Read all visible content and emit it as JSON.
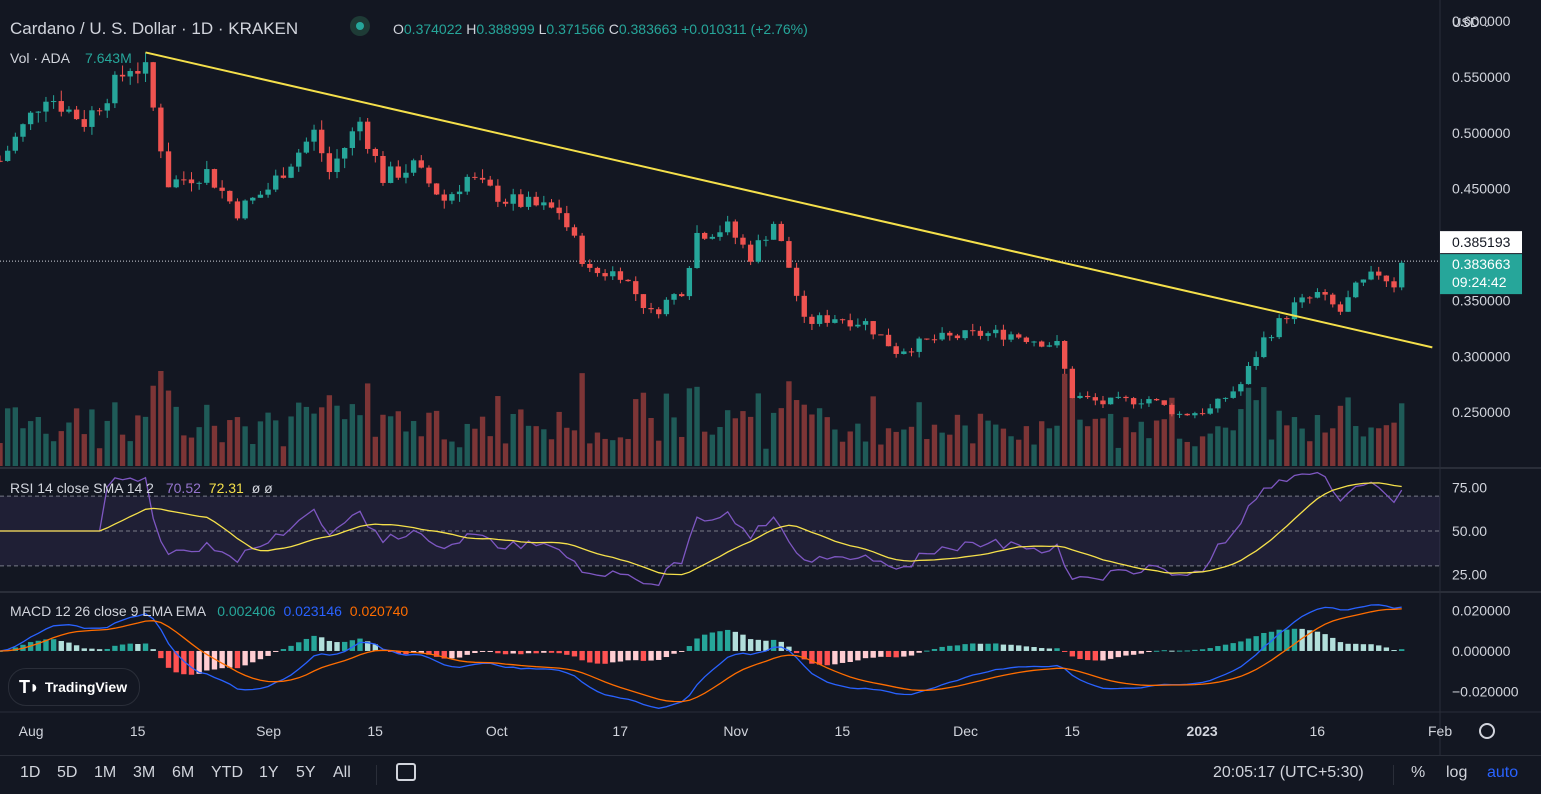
{
  "header": {
    "symbol_title": "Cardano / U. S. Dollar · 1D · KRAKEN",
    "ohlc": [
      {
        "k": "O",
        "v": "0.374022"
      },
      {
        "k": "H",
        "v": "0.388999"
      },
      {
        "k": "L",
        "v": "0.371566"
      },
      {
        "k": "C",
        "v": "0.383663"
      }
    ],
    "change": "+0.010311 (+2.76%)",
    "volume_label": "Vol · ADA",
    "volume_value": "7.643M",
    "currency": "USD"
  },
  "price_scale": {
    "ticks": [
      "0.600000",
      "0.550000",
      "0.500000",
      "0.450000",
      "0.350000",
      "0.300000",
      "0.250000"
    ],
    "marked_price": "0.385193",
    "last_price": "0.383663",
    "countdown": "09:24:42"
  },
  "rsi": {
    "label": "RSI 14 close SMA 14 2",
    "value1": "70.52",
    "value2": "72.31",
    "extra": "ø ø",
    "ticks": [
      "75.00",
      "50.00",
      "25.00"
    ]
  },
  "macd": {
    "label": "MACD 12 26 close 9 EMA EMA",
    "hist": "0.002406",
    "macd": "0.023146",
    "signal": "0.020740",
    "ticks": [
      "0.020000",
      "0.000000",
      "−0.020000"
    ]
  },
  "time_axis": [
    "Aug",
    "15",
    "Sep",
    "15",
    "Oct",
    "17",
    "Nov",
    "15",
    "Dec",
    "15",
    "2023",
    "16",
    "Feb"
  ],
  "brand": "TradingView",
  "bottom_bar": {
    "ranges": [
      "1D",
      "5D",
      "1M",
      "3M",
      "6M",
      "YTD",
      "1Y",
      "5Y",
      "All"
    ],
    "clock": "20:05:17 (UTC+5:30)",
    "percent": "%",
    "log": "log",
    "auto": "auto"
  },
  "chart_data": {
    "type": "candlestick",
    "title": "Cardano / U. S. Dollar · 1D · KRAKEN",
    "x_range": [
      "2022-07-28",
      "2023-02-01"
    ],
    "y_range": [
      0.2,
      0.61
    ],
    "colors": {
      "up": "#26a69a",
      "down": "#ef5350",
      "trendline": "#f5e04b",
      "rsi": "#7e57c2",
      "rsi_sma": "#f5e04b",
      "macd": "#2962ff",
      "signal": "#ff6d00"
    },
    "waypoints": [
      {
        "date": "2022-07-28",
        "close": 0.475
      },
      {
        "date": "2022-08-03",
        "close": 0.535
      },
      {
        "date": "2022-08-08",
        "close": 0.51
      },
      {
        "date": "2022-08-14",
        "close": 0.56
      },
      {
        "date": "2022-08-16",
        "close": 0.555
      },
      {
        "date": "2022-08-19",
        "close": 0.455
      },
      {
        "date": "2022-08-24",
        "close": 0.465
      },
      {
        "date": "2022-08-28",
        "close": 0.43
      },
      {
        "date": "2022-09-01",
        "close": 0.45
      },
      {
        "date": "2022-09-07",
        "close": 0.5
      },
      {
        "date": "2022-09-09",
        "close": 0.465
      },
      {
        "date": "2022-09-13",
        "close": 0.51
      },
      {
        "date": "2022-09-16",
        "close": 0.46
      },
      {
        "date": "2022-09-20",
        "close": 0.47
      },
      {
        "date": "2022-09-24",
        "close": 0.44
      },
      {
        "date": "2022-09-27",
        "close": 0.46
      },
      {
        "date": "2022-10-02",
        "close": 0.44
      },
      {
        "date": "2022-10-09",
        "close": 0.43
      },
      {
        "date": "2022-10-13",
        "close": 0.375
      },
      {
        "date": "2022-10-17",
        "close": 0.375
      },
      {
        "date": "2022-10-21",
        "close": 0.338
      },
      {
        "date": "2022-10-25",
        "close": 0.36
      },
      {
        "date": "2022-10-27",
        "close": 0.41
      },
      {
        "date": "2022-10-31",
        "close": 0.415
      },
      {
        "date": "2022-11-03",
        "close": 0.39
      },
      {
        "date": "2022-11-06",
        "close": 0.42
      },
      {
        "date": "2022-11-08",
        "close": 0.38
      },
      {
        "date": "2022-11-10",
        "close": 0.33
      },
      {
        "date": "2022-11-14",
        "close": 0.335
      },
      {
        "date": "2022-11-18",
        "close": 0.33
      },
      {
        "date": "2022-11-22",
        "close": 0.305
      },
      {
        "date": "2022-11-27",
        "close": 0.315
      },
      {
        "date": "2022-12-03",
        "close": 0.32
      },
      {
        "date": "2022-12-07",
        "close": 0.32
      },
      {
        "date": "2022-12-13",
        "close": 0.31
      },
      {
        "date": "2022-12-15",
        "close": 0.265
      },
      {
        "date": "2022-12-19",
        "close": 0.258
      },
      {
        "date": "2022-12-25",
        "close": 0.262
      },
      {
        "date": "2022-12-29",
        "close": 0.248
      },
      {
        "date": "2023-01-02",
        "close": 0.252
      },
      {
        "date": "2023-01-06",
        "close": 0.275
      },
      {
        "date": "2023-01-09",
        "close": 0.315
      },
      {
        "date": "2023-01-13",
        "close": 0.345
      },
      {
        "date": "2023-01-16",
        "close": 0.355
      },
      {
        "date": "2023-01-19",
        "close": 0.34
      },
      {
        "date": "2023-01-21",
        "close": 0.36
      },
      {
        "date": "2023-01-24",
        "close": 0.375
      },
      {
        "date": "2023-01-26",
        "close": 0.365
      },
      {
        "date": "2023-01-27",
        "close": 0.3837
      }
    ],
    "trendline": {
      "from": {
        "date": "2022-08-16",
        "price": 0.572
      },
      "to": {
        "date": "2023-01-31",
        "price": 0.308
      }
    },
    "horizontal_line_price": 0.385193,
    "rsi_range": [
      15,
      85
    ],
    "rsi_bands": [
      70,
      50,
      30
    ],
    "macd_range": [
      -0.03,
      0.028
    ]
  }
}
